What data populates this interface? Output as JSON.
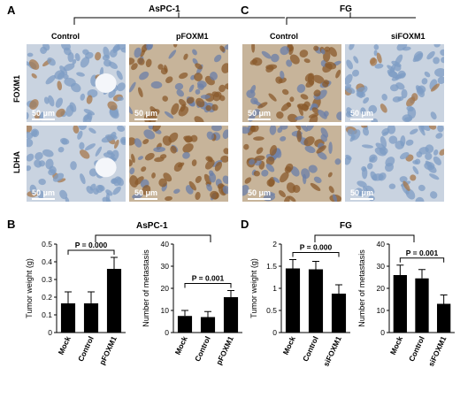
{
  "panels": {
    "A": {
      "letter": "A",
      "group": "AsPC-1",
      "columns": [
        "Control",
        "pFOXM1"
      ]
    },
    "C": {
      "letter": "C",
      "group": "FG",
      "columns": [
        "Control",
        "siFOXM1"
      ]
    },
    "B": {
      "letter": "B",
      "group": "AsPC-1"
    },
    "D": {
      "letter": "D",
      "group": "FG"
    }
  },
  "rows": [
    "FOXM1",
    "LDHA"
  ],
  "scale_label": "50 μm",
  "colors": {
    "stain_brown": "#8a5a2b",
    "stain_blue": "#7e9cc4",
    "background_tissue": "#c9d3e0",
    "bar_fill": "#000000"
  },
  "chart_data": [
    {
      "type": "bar",
      "panel": "B",
      "categories": [
        "Mock",
        "Control",
        "pFOXM1"
      ],
      "values": [
        0.165,
        0.165,
        0.36
      ],
      "errors": [
        0.065,
        0.065,
        0.065
      ],
      "ylabel": "Tumor weight (g)",
      "ylim": [
        0,
        0.5
      ],
      "yticks": [
        0,
        0.1,
        0.2,
        0.3,
        0.4,
        0.5
      ],
      "annotation": {
        "label": "P = 0.000",
        "from": 0,
        "to": 2
      }
    },
    {
      "type": "bar",
      "panel": "B",
      "categories": [
        "Mock",
        "Control",
        "pFOXM1"
      ],
      "values": [
        7.5,
        7,
        16
      ],
      "errors": [
        2.5,
        2.5,
        3
      ],
      "ylabel": "Number of metastasis",
      "ylim": [
        0,
        40
      ],
      "yticks": [
        0,
        10,
        20,
        30,
        40
      ],
      "annotation": {
        "label": "P = 0.001",
        "from": 0,
        "to": 2
      }
    },
    {
      "type": "bar",
      "panel": "D",
      "categories": [
        "Mock",
        "Control",
        "siFOXM1"
      ],
      "values": [
        1.45,
        1.43,
        0.88
      ],
      "errors": [
        0.2,
        0.18,
        0.2
      ],
      "ylabel": "Tumor weight (g)",
      "ylim": [
        0,
        2
      ],
      "yticks": [
        0,
        0.5,
        1,
        1.5,
        2
      ],
      "annotation": {
        "label": "P = 0.000",
        "from": 0,
        "to": 2
      }
    },
    {
      "type": "bar",
      "panel": "D",
      "categories": [
        "Mock",
        "Control",
        "siFOXM1"
      ],
      "values": [
        26,
        24.5,
        13
      ],
      "errors": [
        4.5,
        4,
        4
      ],
      "ylabel": "Number of metastasis",
      "ylim": [
        0,
        40
      ],
      "yticks": [
        0,
        10,
        20,
        30,
        40
      ],
      "annotation": {
        "label": "P = 0.001",
        "from": 0,
        "to": 2
      }
    }
  ]
}
